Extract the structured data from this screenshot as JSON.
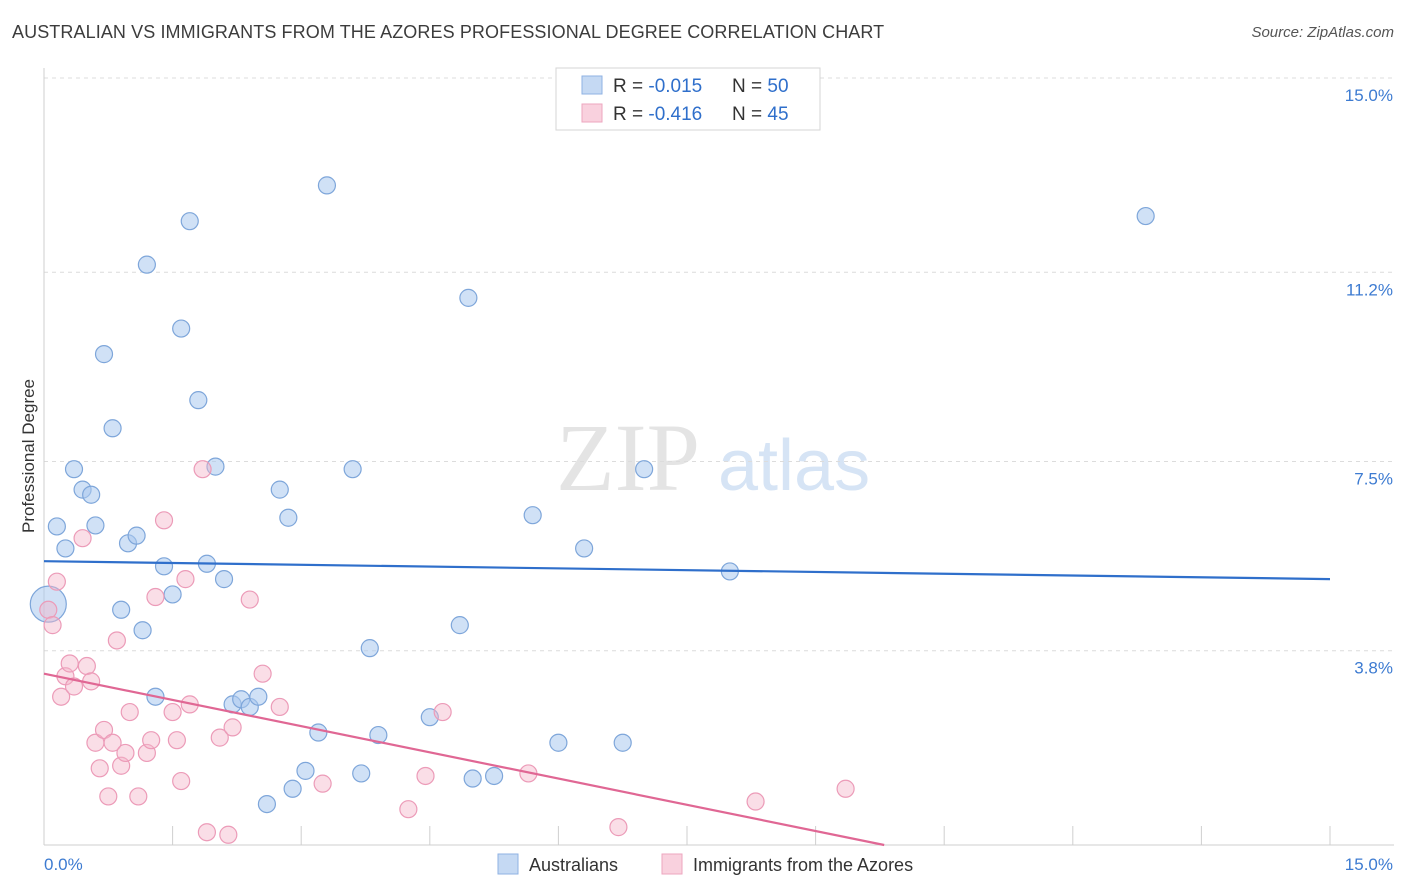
{
  "chart_data": {
    "type": "scatter",
    "title": "AUSTRALIAN VS IMMIGRANTS FROM THE AZORES PROFESSIONAL DEGREE CORRELATION CHART",
    "source": "Source: ZipAtlas.com",
    "ylabel": "Professional Degree",
    "xlim": [
      0,
      15
    ],
    "ylim": [
      0,
      15
    ],
    "x_tick_labels": [
      "0.0%",
      "15.0%"
    ],
    "y_ticks": [
      3.8,
      7.5,
      11.2,
      15.0
    ],
    "y_tick_labels": [
      "3.8%",
      "7.5%",
      "11.2%",
      "15.0%"
    ],
    "watermark": {
      "zip": "ZIP",
      "atlas": "atlas"
    },
    "colors": {
      "blue": "#a9c8ee",
      "blue_line": "#2f6fcb",
      "pink": "#f4b6c9",
      "pink_line": "#e06794",
      "axis_text": "#3d7bd1"
    },
    "stats": [
      {
        "r_label": "R = ",
        "r_value": "-0.015",
        "n_label": "N = ",
        "n_value": "50"
      },
      {
        "r_label": "R = ",
        "r_value": "-0.416",
        "n_label": "N = ",
        "n_value": "45"
      }
    ],
    "series": [
      {
        "name": "Australians",
        "points": [
          [
            0.05,
            4.71
          ],
          [
            0.15,
            6.23
          ],
          [
            0.25,
            5.8
          ],
          [
            0.35,
            7.35
          ],
          [
            0.45,
            6.95
          ],
          [
            0.55,
            6.85
          ],
          [
            0.6,
            6.25
          ],
          [
            0.7,
            9.6
          ],
          [
            0.8,
            8.15
          ],
          [
            0.9,
            4.6
          ],
          [
            0.98,
            5.9
          ],
          [
            1.08,
            6.05
          ],
          [
            1.15,
            4.2
          ],
          [
            1.2,
            11.35
          ],
          [
            1.3,
            2.9
          ],
          [
            1.4,
            5.45
          ],
          [
            1.5,
            4.9
          ],
          [
            1.6,
            10.1
          ],
          [
            1.7,
            12.2
          ],
          [
            1.8,
            8.7
          ],
          [
            1.9,
            5.5
          ],
          [
            2.0,
            7.4
          ],
          [
            2.1,
            5.2
          ],
          [
            2.2,
            2.75
          ],
          [
            2.3,
            2.85
          ],
          [
            2.4,
            2.7
          ],
          [
            2.5,
            2.9
          ],
          [
            2.6,
            0.8
          ],
          [
            2.75,
            6.95
          ],
          [
            2.85,
            6.4
          ],
          [
            2.9,
            1.1
          ],
          [
            3.05,
            1.45
          ],
          [
            3.2,
            2.2
          ],
          [
            3.3,
            12.9
          ],
          [
            3.6,
            7.35
          ],
          [
            3.7,
            1.4
          ],
          [
            3.8,
            3.85
          ],
          [
            3.9,
            2.15
          ],
          [
            4.5,
            2.5
          ],
          [
            4.85,
            4.3
          ],
          [
            4.95,
            10.7
          ],
          [
            5.0,
            1.3
          ],
          [
            5.25,
            1.35
          ],
          [
            5.7,
            6.45
          ],
          [
            6.0,
            2.0
          ],
          [
            6.3,
            5.8
          ],
          [
            6.75,
            2.0
          ],
          [
            7.0,
            7.35
          ],
          [
            8.0,
            5.35
          ],
          [
            12.85,
            12.3
          ]
        ],
        "trend": [
          [
            0,
            5.55
          ],
          [
            15,
            5.2
          ]
        ]
      },
      {
        "name": "Immigrants from the Azores",
        "points": [
          [
            0.05,
            4.6
          ],
          [
            0.1,
            4.3
          ],
          [
            0.15,
            5.15
          ],
          [
            0.2,
            2.9
          ],
          [
            0.25,
            3.3
          ],
          [
            0.3,
            3.55
          ],
          [
            0.35,
            3.1
          ],
          [
            0.45,
            6.0
          ],
          [
            0.5,
            3.5
          ],
          [
            0.55,
            3.2
          ],
          [
            0.6,
            2.0
          ],
          [
            0.65,
            1.5
          ],
          [
            0.7,
            2.25
          ],
          [
            0.75,
            0.95
          ],
          [
            0.8,
            2.0
          ],
          [
            0.85,
            4.0
          ],
          [
            0.9,
            1.55
          ],
          [
            0.95,
            1.8
          ],
          [
            1.0,
            2.6
          ],
          [
            1.1,
            0.95
          ],
          [
            1.2,
            1.8
          ],
          [
            1.25,
            2.05
          ],
          [
            1.3,
            4.85
          ],
          [
            1.4,
            6.35
          ],
          [
            1.5,
            2.6
          ],
          [
            1.55,
            2.05
          ],
          [
            1.6,
            1.25
          ],
          [
            1.65,
            5.2
          ],
          [
            1.7,
            2.75
          ],
          [
            1.85,
            7.35
          ],
          [
            1.9,
            0.25
          ],
          [
            2.05,
            2.1
          ],
          [
            2.15,
            0.2
          ],
          [
            2.2,
            2.3
          ],
          [
            2.4,
            4.8
          ],
          [
            2.55,
            3.35
          ],
          [
            2.75,
            2.7
          ],
          [
            3.25,
            1.2
          ],
          [
            4.25,
            0.7
          ],
          [
            4.45,
            1.35
          ],
          [
            4.65,
            2.6
          ],
          [
            5.65,
            1.4
          ],
          [
            6.7,
            0.35
          ],
          [
            8.3,
            0.85
          ],
          [
            9.35,
            1.1
          ]
        ],
        "trend": [
          [
            0,
            3.35
          ],
          [
            9.8,
            0.0
          ]
        ]
      }
    ],
    "legend": [
      "Australians",
      "Immigrants from the Azores"
    ]
  }
}
